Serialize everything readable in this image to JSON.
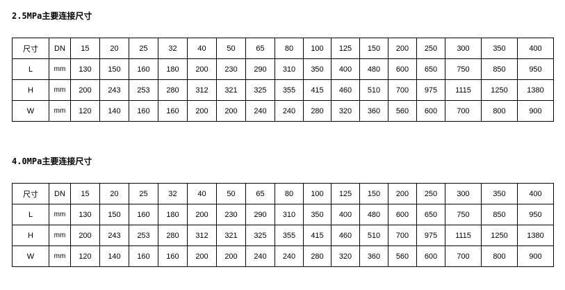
{
  "sections": [
    {
      "title": "2.5MPa主要连接尺寸",
      "header": [
        "尺寸",
        "DN",
        "15",
        "20",
        "25",
        "32",
        "40",
        "50",
        "65",
        "80",
        "100",
        "125",
        "150",
        "200",
        "250",
        "300",
        "350",
        "400"
      ],
      "rows": [
        [
          "L",
          "mm",
          "130",
          "150",
          "160",
          "180",
          "200",
          "230",
          "290",
          "310",
          "350",
          "400",
          "480",
          "600",
          "650",
          "750",
          "850",
          "950"
        ],
        [
          "H",
          "mm",
          "200",
          "243",
          "253",
          "280",
          "312",
          "321",
          "325",
          "355",
          "415",
          "460",
          "510",
          "700",
          "975",
          "1115",
          "1250",
          "1380"
        ],
        [
          "W",
          "mm",
          "120",
          "140",
          "160",
          "160",
          "200",
          "200",
          "240",
          "240",
          "280",
          "320",
          "360",
          "560",
          "600",
          "700",
          "800",
          "900"
        ]
      ]
    },
    {
      "title": "4.0MPa主要连接尺寸",
      "header": [
        "尺寸",
        "DN",
        "15",
        "20",
        "25",
        "32",
        "40",
        "50",
        "65",
        "80",
        "100",
        "125",
        "150",
        "200",
        "250",
        "300",
        "350",
        "400"
      ],
      "rows": [
        [
          "L",
          "mm",
          "130",
          "150",
          "160",
          "180",
          "200",
          "230",
          "290",
          "310",
          "350",
          "400",
          "480",
          "600",
          "650",
          "750",
          "850",
          "950"
        ],
        [
          "H",
          "mm",
          "200",
          "243",
          "253",
          "280",
          "312",
          "321",
          "325",
          "355",
          "415",
          "460",
          "510",
          "700",
          "975",
          "1115",
          "1250",
          "1380"
        ],
        [
          "W",
          "mm",
          "120",
          "140",
          "160",
          "160",
          "200",
          "200",
          "240",
          "240",
          "280",
          "320",
          "360",
          "560",
          "600",
          "700",
          "800",
          "900"
        ]
      ]
    }
  ]
}
